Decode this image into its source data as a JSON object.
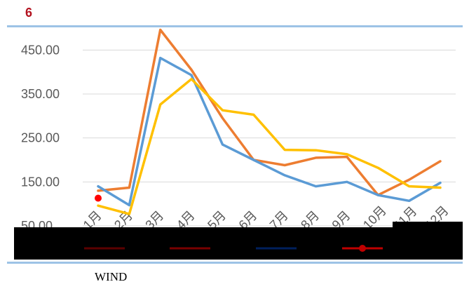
{
  "figure": {
    "number": "6"
  },
  "colors": {
    "orange": "#ed7d31",
    "blue": "#5b9bd5",
    "yellow": "#ffc000",
    "marker": "#ff0000",
    "legend_dark": "#5b0000",
    "legend_dark2": "#7a0000",
    "legend_navy": "#001f5c",
    "legend_red": "#c00000"
  },
  "chart_data": {
    "type": "line",
    "title": "",
    "xlabel": "",
    "ylabel": "",
    "categories": [
      "1月",
      "2月",
      "3月",
      "4月",
      "5月",
      "6月",
      "7月",
      "8月",
      "9月",
      "10月",
      "11月",
      "12月"
    ],
    "y_ticks": [
      "50.00",
      "150.00",
      "250.00",
      "350.00",
      "450.00"
    ],
    "ylim": [
      50,
      500
    ],
    "grid": true,
    "series": [
      {
        "color": "#ed7d31",
        "values": [
          130,
          137,
          496,
          405,
          295,
          200,
          188,
          205,
          207,
          120,
          155,
          197
        ]
      },
      {
        "color": "#5b9bd5",
        "values": [
          140,
          97,
          432,
          393,
          235,
          200,
          165,
          140,
          150,
          120,
          107,
          148
        ]
      },
      {
        "color": "#ffc000",
        "values": [
          96,
          77,
          326,
          384,
          313,
          303,
          223,
          222,
          213,
          182,
          140,
          137
        ]
      }
    ],
    "markers": [
      {
        "category": "1月",
        "value": 113,
        "color": "#ff0000"
      }
    ]
  },
  "source": {
    "label": "WIND"
  }
}
